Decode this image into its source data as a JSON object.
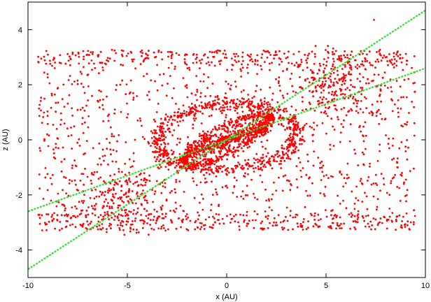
{
  "chart_data": {
    "type": "scatter",
    "title": "",
    "xlabel": "x (AU)",
    "ylabel": "z (AU)",
    "xlim": [
      -10,
      10
    ],
    "ylim": [
      -5,
      5
    ],
    "x_ticks": [
      -10,
      -5,
      0,
      5,
      10
    ],
    "y_ticks": [
      -4,
      -2,
      0,
      2,
      4
    ],
    "x_tick_labels": [
      "-10",
      "-5",
      "0",
      "5",
      "10"
    ],
    "y_tick_labels": [
      "-4",
      "-2",
      "0",
      "2",
      "4"
    ],
    "grid": false,
    "legend": "none",
    "scatter_color": "#ff0000",
    "line_color": "#33dd33",
    "points_approx_count": 3600,
    "point_distribution": [
      {
        "component": "box",
        "x_range": [
          -9.5,
          9.5
        ],
        "z_range": [
          -3.3,
          3.3
        ],
        "share": 0.45
      },
      {
        "component": "ring",
        "center": [
          0,
          0.1
        ],
        "radius_x": 3.5,
        "radius_z": 1.2,
        "share": 0.18
      },
      {
        "component": "inner-ellipse",
        "center": [
          0,
          0
        ],
        "radius_x": 2.2,
        "radius_z": 0.5,
        "tilt_slope": 0.35,
        "share": 0.15
      },
      {
        "component": "central-bar",
        "x_range": [
          -2,
          2
        ],
        "slope": 0.28,
        "share": 0.12
      },
      {
        "component": "upper-right-cluster",
        "center": [
          5.5,
          2
        ],
        "share": 0.05
      },
      {
        "component": "lower-left-cluster",
        "center": [
          -5.5,
          -2.2
        ],
        "share": 0.05
      }
    ],
    "lines": [
      {
        "x": [
          -10,
          10
        ],
        "y": [
          -4.7,
          4.7
        ]
      },
      {
        "x": [
          -10,
          10
        ],
        "y": [
          -2.6,
          2.6
        ]
      }
    ]
  }
}
